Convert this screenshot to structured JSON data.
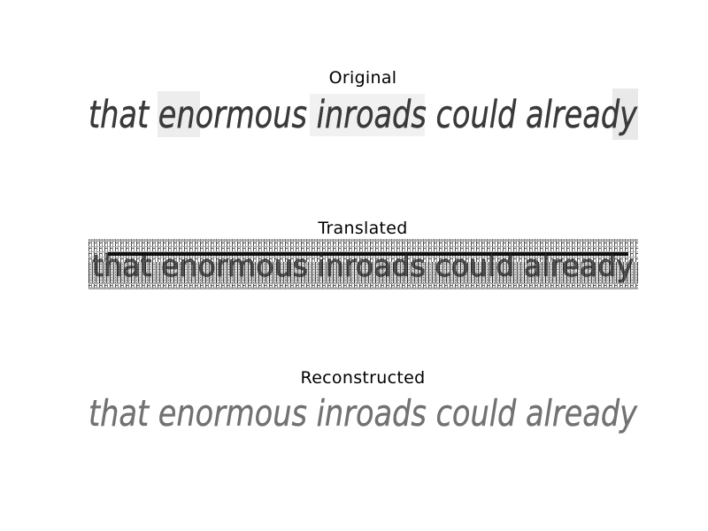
{
  "figure": {
    "panels": [
      {
        "title": "Original"
      },
      {
        "title": "Translated"
      },
      {
        "title": "Reconstructed"
      }
    ],
    "handwriting_text": "that enormous inroads could already"
  }
}
